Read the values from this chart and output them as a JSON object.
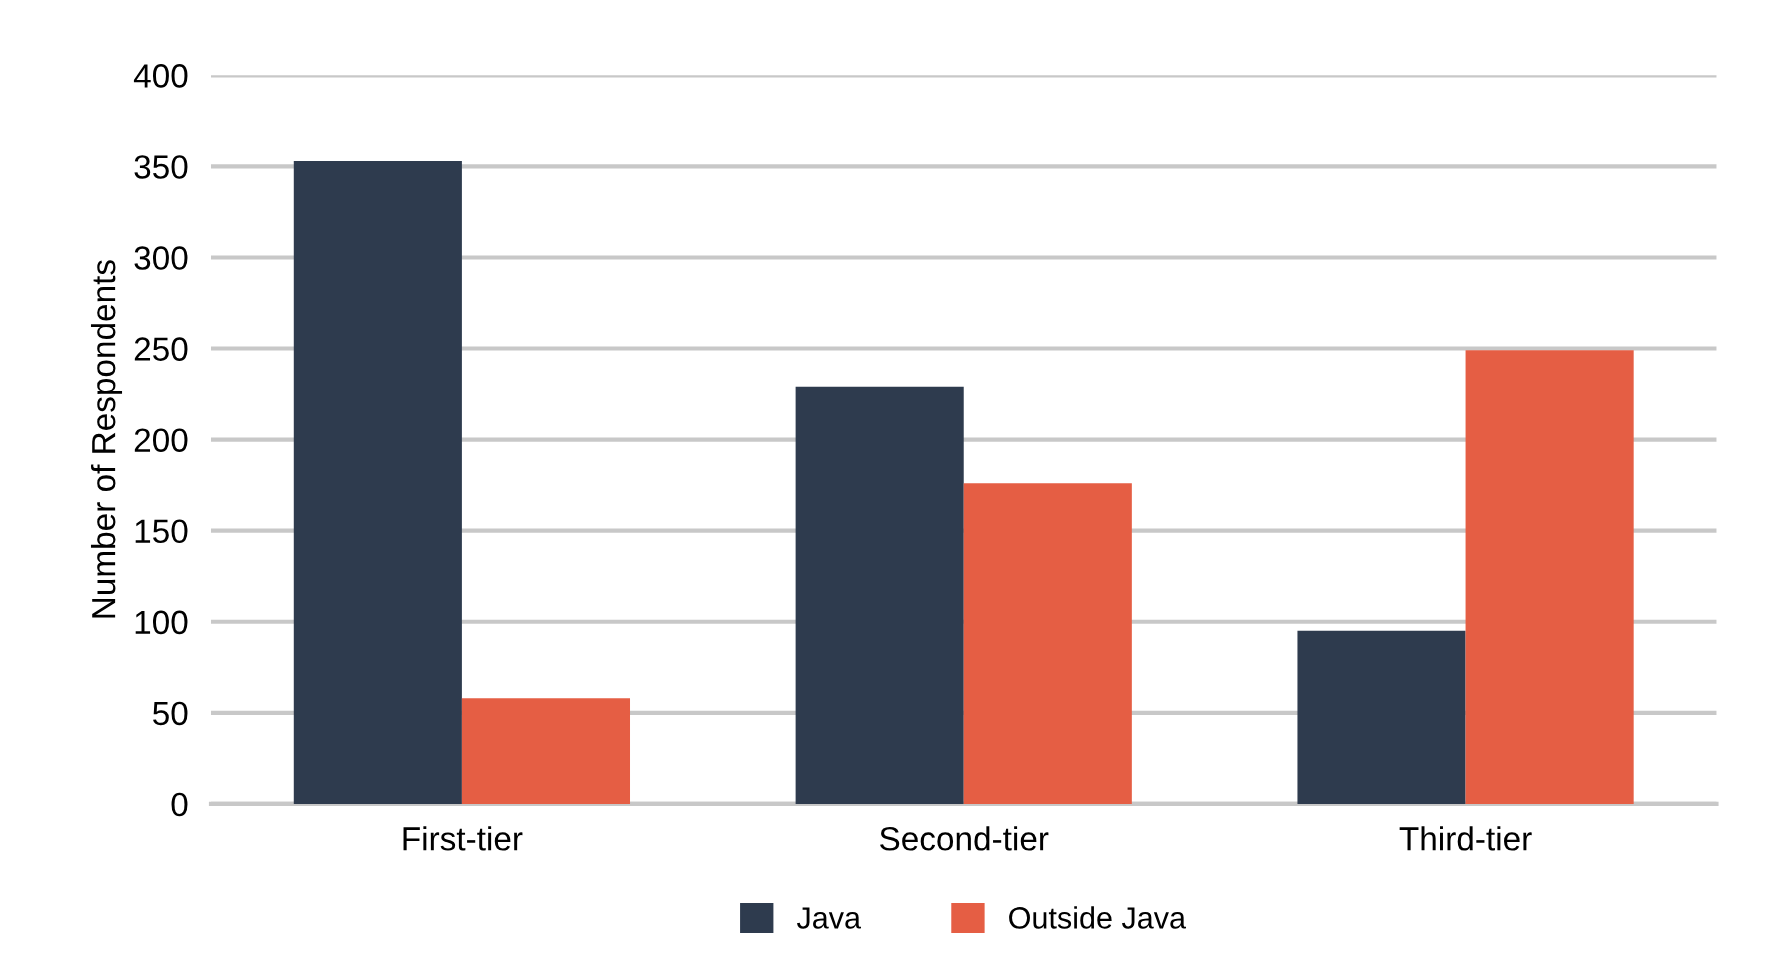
{
  "chart_data": {
    "type": "bar",
    "ylabel": "Number of Respondents",
    "categories": [
      "First-tier",
      "Second-tier",
      "Third-tier"
    ],
    "series": [
      {
        "name": "Java",
        "color": "#2e3b4e",
        "values": [
          353,
          229,
          95
        ]
      },
      {
        "name": "Outside Java",
        "color": "#e55e44",
        "values": [
          58,
          176,
          249
        ]
      }
    ],
    "ylim": [
      0,
      400
    ],
    "yticks": [
      0,
      50,
      100,
      150,
      200,
      250,
      300,
      350,
      400
    ],
    "grid": "y",
    "legend": "bottom"
  }
}
